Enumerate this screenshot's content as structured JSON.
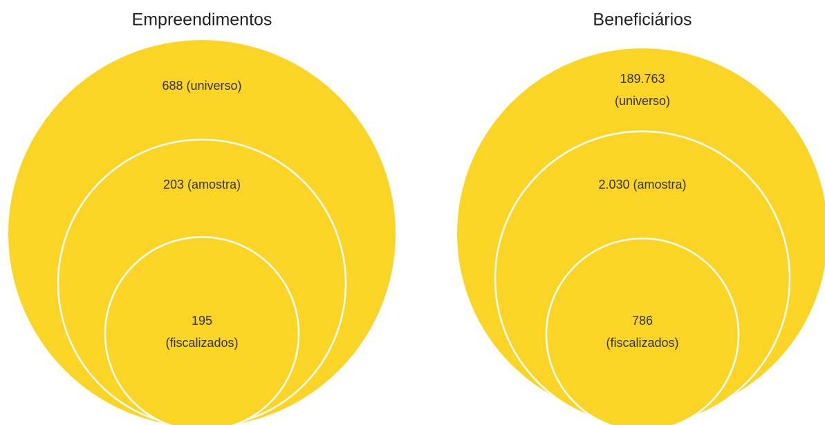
{
  "panels": [
    {
      "title": "Empreendimentos",
      "circles": [
        {
          "label": [
            "688 (universo)"
          ]
        },
        {
          "label": [
            "203 (amostra)"
          ]
        },
        {
          "label": [
            "195",
            "(fiscalizados)"
          ]
        }
      ]
    },
    {
      "title": "Beneficiários",
      "circles": [
        {
          "label": [
            "189.763",
            "(universo)"
          ]
        },
        {
          "label": [
            "2.030 (amostra)"
          ]
        },
        {
          "label": [
            "786",
            "(fiscalizados)"
          ]
        }
      ]
    }
  ]
}
